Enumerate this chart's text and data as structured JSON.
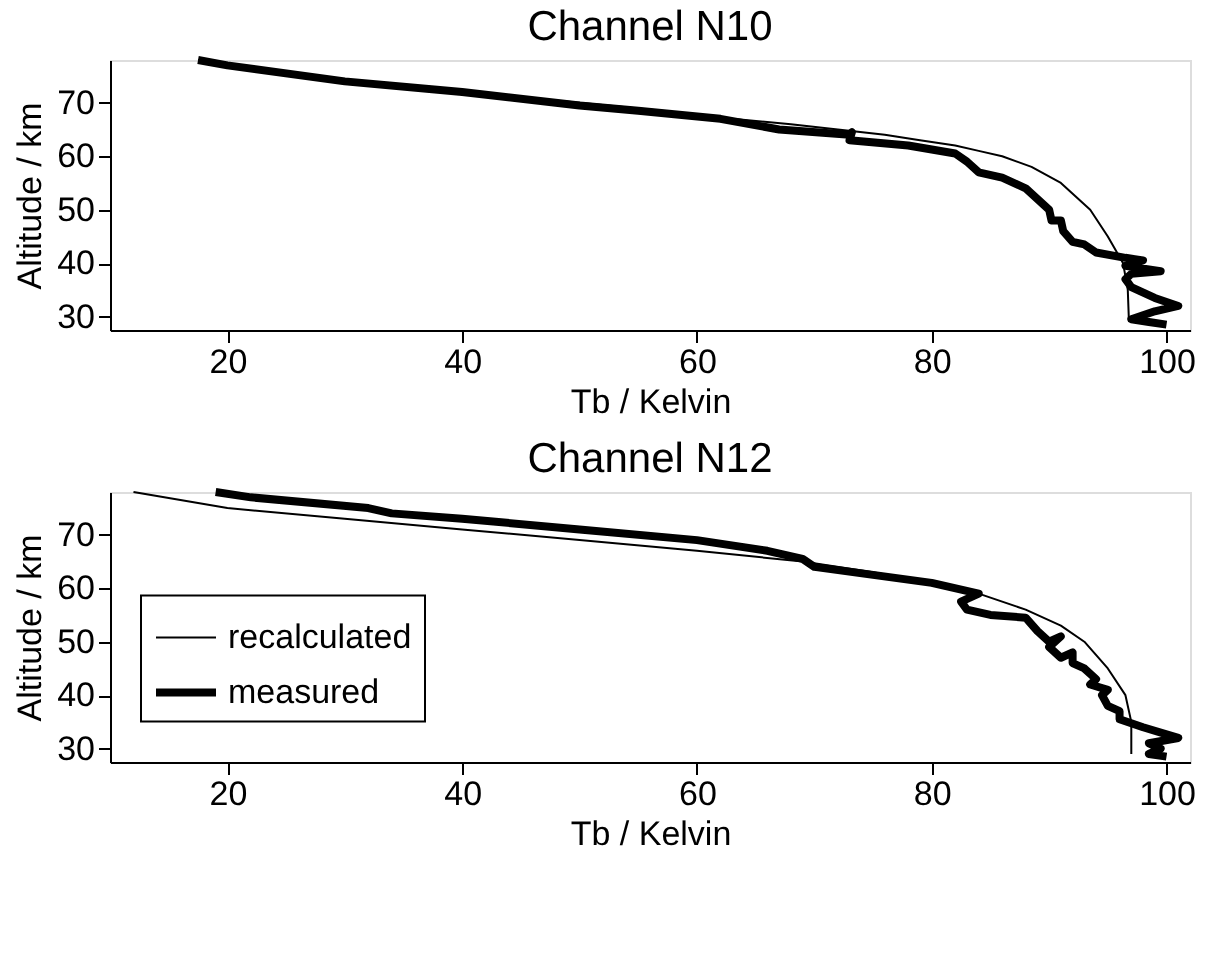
{
  "chart_data": [
    {
      "type": "line",
      "title": "Channel N10",
      "xlabel": "Tb / Kelvin",
      "ylabel": "Altitude / km",
      "xlim": [
        10,
        102
      ],
      "ylim": [
        27.5,
        78
      ],
      "xticks": [
        20,
        40,
        60,
        80,
        100
      ],
      "yticks": [
        30,
        40,
        50,
        60,
        70
      ],
      "grid": false,
      "legend": false,
      "marker": "none",
      "line_style": "solid",
      "series": [
        {
          "color": "#000000",
          "x": [
            17.5,
            27,
            40,
            50,
            57,
            63,
            68,
            72,
            76,
            79,
            82,
            84,
            86,
            88.5,
            91,
            93.5,
            95,
            96.3,
            96.7,
            96.8
          ],
          "values": [
            78,
            75,
            72,
            70,
            68.5,
            67,
            66,
            65,
            64,
            63,
            62,
            61,
            60,
            58,
            55,
            50,
            45,
            40,
            35,
            29
          ]
        },
        {
          "color": "#000000",
          "x": [
            17.5,
            20,
            30,
            40,
            50,
            55,
            62,
            67,
            73,
            73.2,
            73,
            78,
            82,
            83,
            84,
            86,
            88,
            89,
            90,
            90.2,
            91,
            91.2,
            92,
            93,
            94,
            96.5,
            98,
            96.5,
            99.5,
            97,
            96.5,
            97,
            99,
            101,
            99,
            97,
            98.5,
            100
          ],
          "values": [
            78,
            77,
            74,
            72,
            69.5,
            68.5,
            67,
            65,
            64,
            64.5,
            63,
            62,
            60.5,
            59,
            57,
            56,
            54,
            52,
            50,
            48,
            48,
            46,
            44,
            43.5,
            42,
            41,
            40.5,
            39.5,
            38.5,
            38,
            37,
            35.5,
            33.5,
            32,
            31,
            29.5,
            29,
            28.5
          ]
        }
      ]
    },
    {
      "type": "line",
      "title": "Channel N12",
      "xlabel": "Tb / Kelvin",
      "ylabel": "Altitude / km",
      "xlim": [
        10,
        102
      ],
      "ylim": [
        27.5,
        78
      ],
      "xticks": [
        20,
        40,
        60,
        80,
        100
      ],
      "yticks": [
        30,
        40,
        50,
        60,
        70
      ],
      "grid": false,
      "legend": "left",
      "marker": "none",
      "line_style": "solid",
      "series": [
        {
          "name": "recalculated",
          "color": "#000000",
          "x": [
            12,
            20,
            30,
            40,
            50,
            60,
            69,
            75,
            80,
            84,
            88,
            91,
            93,
            95,
            96.5,
            97,
            97
          ],
          "values": [
            78,
            75,
            73,
            71,
            69,
            67,
            65,
            63,
            61,
            59,
            56,
            53,
            50,
            45,
            40,
            35,
            29
          ]
        },
        {
          "name": "measured",
          "color": "#000000",
          "x": [
            19,
            22,
            32,
            34,
            40,
            50,
            60,
            66,
            69,
            70,
            75,
            80,
            84,
            82.5,
            83,
            85,
            88,
            89,
            90,
            91,
            90,
            91,
            92,
            92,
            93,
            94,
            93.5,
            95,
            94.5,
            95,
            96,
            96,
            98,
            101,
            98.5,
            99.5,
            98.5,
            100
          ],
          "values": [
            78,
            77,
            75,
            74,
            73,
            71,
            69,
            67,
            65.5,
            64,
            62.5,
            61,
            59,
            57.5,
            56,
            55,
            54.5,
            52,
            50,
            51,
            49,
            47,
            48,
            46,
            45,
            43,
            42,
            41,
            40,
            38,
            37,
            35.5,
            34,
            32,
            31,
            30,
            29,
            28.5
          ]
        }
      ]
    }
  ]
}
